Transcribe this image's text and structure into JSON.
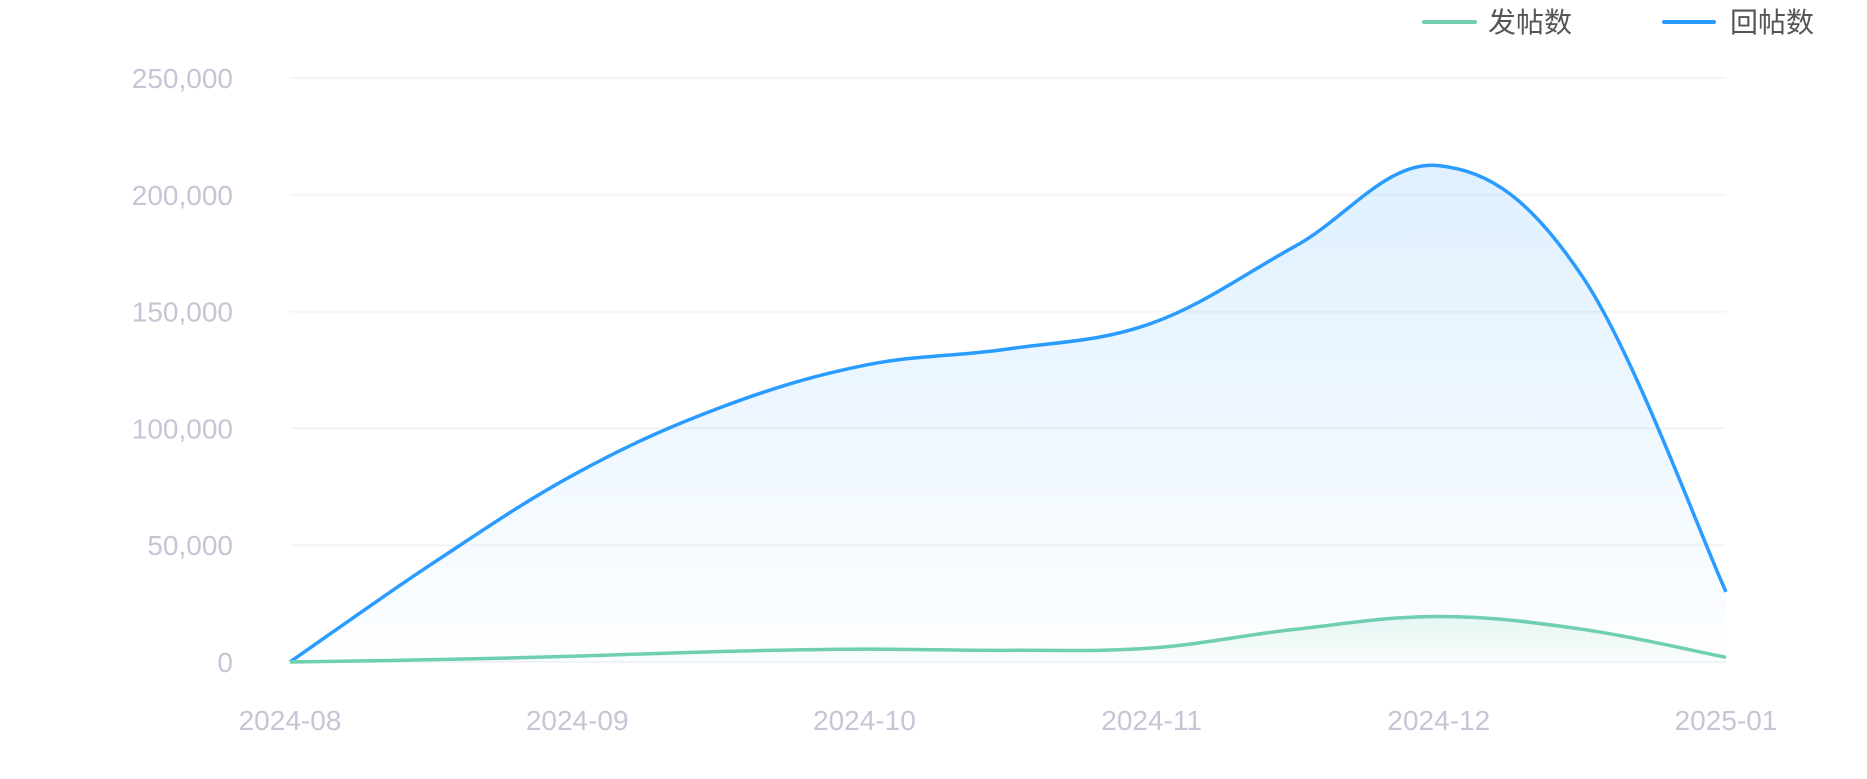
{
  "chart_data": {
    "type": "area",
    "title": "",
    "xlabel": "",
    "ylabel": "",
    "x_tick_labels": [
      "2024-08",
      "2024-09",
      "2024-10",
      "2024-11",
      "2024-12",
      "2025-01"
    ],
    "y_tick_labels": [
      "0",
      "50,000",
      "100,000",
      "150,000",
      "200,000",
      "250,000"
    ],
    "ylim": [
      0,
      250000
    ],
    "grid": true,
    "legend_position": "top-right",
    "x": [
      "2024-08",
      "2024-08-mid",
      "2024-09",
      "2024-09-mid",
      "2024-10",
      "2024-10-mid",
      "2024-11",
      "2024-11-mid",
      "2024-12",
      "2024-12-mid",
      "2025-01"
    ],
    "series": [
      {
        "name": "发帖数",
        "color": "#6fcfb0",
        "values": [
          0,
          1000,
          2500,
          4500,
          5500,
          5000,
          6000,
          14000,
          19500,
          14000,
          2000
        ]
      },
      {
        "name": "回帖数",
        "color": "#2b9cff",
        "values": [
          0,
          42500,
          81000,
          109000,
          127000,
          134000,
          145000,
          178000,
          212500,
          165000,
          30000
        ]
      }
    ]
  }
}
